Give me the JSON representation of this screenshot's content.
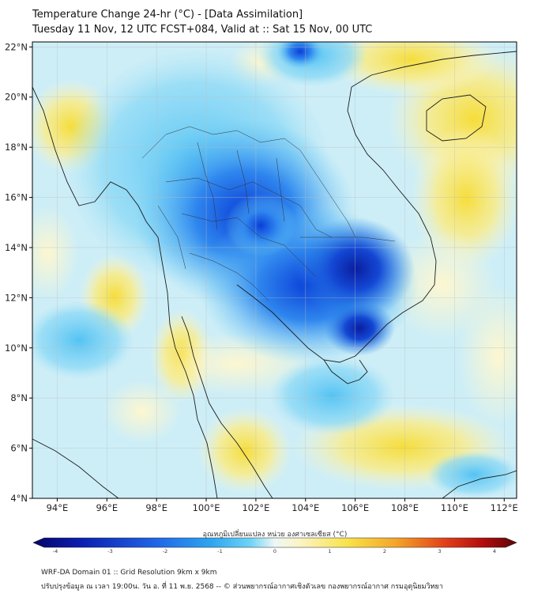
{
  "header": {
    "title_line1": "Temperature Change 24-hr (°C) - [Data Assimilation]",
    "title_line2": "Tuesday 11 Nov, 12 UTC FCST+084, Valid at :: Sat 15 Nov, 00 UTC"
  },
  "map": {
    "lon_ticks": [
      "94°E",
      "96°E",
      "98°E",
      "100°E",
      "102°E",
      "104°E",
      "106°E",
      "108°E",
      "110°E",
      "112°E"
    ],
    "lat_ticks": [
      "22°N",
      "20°N",
      "18°N",
      "16°N",
      "14°N",
      "12°N",
      "10°N",
      "8°N",
      "6°N",
      "4°N"
    ],
    "lon_range": [
      93,
      112.5
    ],
    "lat_range": [
      4,
      22.2
    ]
  },
  "colorbar": {
    "title": "อุณหภูมิเปลี่ยนแปลง หน่วย องศาเซลเซียส (°C)",
    "ticks": [
      "-4",
      "-3",
      "-2",
      "-1",
      "0",
      "1",
      "2",
      "3",
      "4"
    ],
    "colors": [
      "#050569",
      "#0b1fb0",
      "#1f64e6",
      "#2ea6f0",
      "#6fd4f6",
      "#d6eef7",
      "#fbf4c7",
      "#f8e34a",
      "#f4a52a",
      "#e2421a",
      "#b20d0d",
      "#5c0606"
    ]
  },
  "footer": {
    "line1": "WRF-DA Domain 01 :: Grid Resolution 9km x 9km",
    "line2": "ปรับปรุงข้อมูล ณ เวลา 19:00น. วัน อ. ที่ 11 พ.ย. 2568 -- © ส่วนพยากรณ์อากาศเชิงตัวเลข กองพยากรณ์อากาศ กรมอุตุนิยมวิทยา"
  }
}
